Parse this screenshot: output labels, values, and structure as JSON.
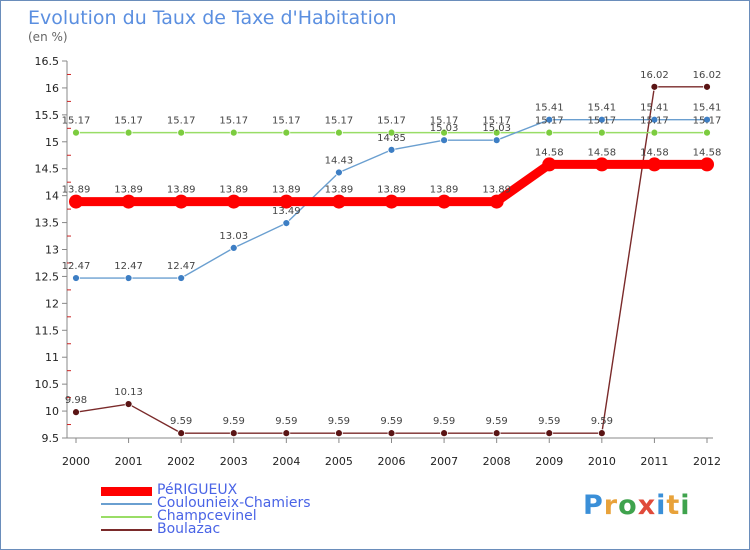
{
  "title": "Evolution du Taux de Taxe d'Habitation",
  "unit": "(en %)",
  "logo": {
    "text": "Proxiti",
    "colors": [
      "#3a8fd8",
      "#e8a23a",
      "#3fa34d",
      "#e04a3a",
      "#3a8fd8",
      "#e8a23a",
      "#3fa34d"
    ]
  },
  "chart_data": {
    "type": "line",
    "title": "Evolution du Taux de Taxe d'Habitation",
    "ylabel": "(en %)",
    "xlabel": "",
    "x": [
      "2000",
      "2001",
      "2002",
      "2003",
      "2004",
      "2005",
      "2006",
      "2007",
      "2008",
      "2009",
      "2010",
      "2011",
      "2012"
    ],
    "ylim": [
      9.5,
      16.5
    ],
    "yticks": [
      "9.5",
      "10",
      "10.5",
      "11",
      "11.5",
      "12",
      "12.5",
      "13",
      "13.5",
      "14",
      "14.5",
      "15",
      "15.5",
      "16",
      "16.5"
    ],
    "grid": false,
    "legend_position": "bottom-left",
    "series": [
      {
        "name": "PéRIGUEUX",
        "color": "#ff0000",
        "values": [
          13.89,
          13.89,
          13.89,
          13.89,
          13.89,
          13.89,
          13.89,
          13.89,
          13.89,
          14.58,
          14.58,
          14.58,
          14.58
        ],
        "labels": [
          "13.89",
          "13.89",
          "13.89",
          "13.89",
          "13.89",
          "13.89",
          "13.89",
          "13.89",
          "13.89",
          "14.58",
          "14.58",
          "14.58",
          "14.58"
        ]
      },
      {
        "name": "Coulounieix-Chamiers",
        "color": "#6a9fd0",
        "values": [
          12.47,
          12.47,
          12.47,
          13.03,
          13.49,
          14.43,
          14.85,
          15.03,
          15.03,
          15.41,
          15.41,
          15.41,
          15.41
        ],
        "labels": [
          "12.47",
          "12.47",
          "12.47",
          "13.03",
          "13.49",
          "14.43",
          "14.85",
          "15.03",
          "15.03",
          "15.41",
          "15.41",
          "15.41",
          "15.41"
        ]
      },
      {
        "name": "Champcevinel",
        "color": "#99dd66",
        "values": [
          15.17,
          15.17,
          15.17,
          15.17,
          15.17,
          15.17,
          15.17,
          15.17,
          15.17,
          15.17,
          15.17,
          15.17,
          15.17
        ],
        "labels": [
          "15.17",
          "15.17",
          "15.17",
          "15.17",
          "15.17",
          "15.17",
          "15.17",
          "15.17",
          "15.17",
          "15.17",
          "15.17",
          "15.17",
          "15.17"
        ]
      },
      {
        "name": "Boulazac",
        "color": "#7a2a2a",
        "values": [
          9.98,
          10.13,
          9.59,
          9.59,
          9.59,
          9.59,
          9.59,
          9.59,
          9.59,
          9.59,
          9.59,
          16.02,
          16.02
        ],
        "labels": [
          "9.98",
          "10.13",
          "9.59",
          "9.59",
          "9.59",
          "9.59",
          "9.59",
          "9.59",
          "9.59",
          "9.59",
          "9.59",
          "16.02",
          "16.02"
        ]
      }
    ]
  }
}
